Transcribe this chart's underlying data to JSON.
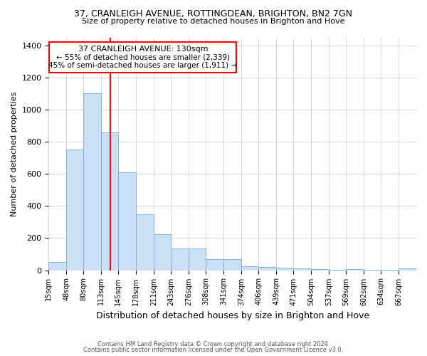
{
  "title1": "37, CRANLEIGH AVENUE, ROTTINGDEAN, BRIGHTON, BN2 7GN",
  "title2": "Size of property relative to detached houses in Brighton and Hove",
  "xlabel": "Distribution of detached houses by size in Brighton and Hove",
  "ylabel": "Number of detached properties",
  "footnote1": "Contains HM Land Registry data © Crown copyright and database right 2024.",
  "footnote2": "Contains public sector information licensed under the Open Government Licence v3.0.",
  "property_size": 130,
  "property_label": "37 CRANLEIGH AVENUE: 130sqm",
  "annotation1": "← 55% of detached houses are smaller (2,339)",
  "annotation2": "45% of semi-detached houses are larger (1,911) →",
  "bar_color": "#cce0f5",
  "bar_edge_color": "#7fb3d9",
  "vline_color": "red",
  "box_edge_color": "red",
  "categories": [
    "15sqm",
    "48sqm",
    "80sqm",
    "113sqm",
    "145sqm",
    "178sqm",
    "211sqm",
    "243sqm",
    "276sqm",
    "308sqm",
    "341sqm",
    "374sqm",
    "406sqm",
    "439sqm",
    "471sqm",
    "504sqm",
    "537sqm",
    "569sqm",
    "602sqm",
    "634sqm",
    "667sqm"
  ],
  "values": [
    50,
    750,
    1100,
    860,
    610,
    350,
    225,
    135,
    135,
    70,
    70,
    25,
    20,
    15,
    10,
    5,
    1,
    5,
    1,
    1,
    10
  ],
  "bin_edges_sqm": [
    15,
    48,
    80,
    113,
    145,
    178,
    211,
    243,
    276,
    308,
    341,
    374,
    406,
    439,
    471,
    504,
    537,
    569,
    602,
    634,
    667,
    700
  ],
  "ylim": [
    0,
    1450
  ],
  "yticks": [
    0,
    200,
    400,
    600,
    800,
    1000,
    1200,
    1400
  ],
  "background_color": "#ffffff",
  "grid_color": "#c0c8d0"
}
